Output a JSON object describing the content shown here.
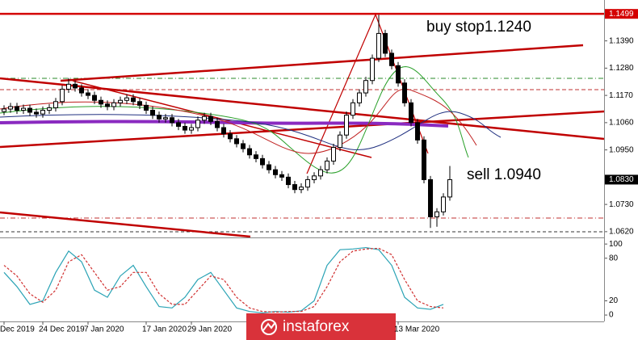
{
  "chart_data": [
    {
      "type": "candlestick",
      "categories": [
        "Dec 2019",
        null,
        null,
        null,
        null,
        null,
        "24 Dec 2019",
        null,
        null,
        null,
        null,
        null,
        null,
        "7 Jan 2020",
        null,
        null,
        null,
        null,
        null,
        null,
        null,
        null,
        "17 Jan 2020",
        null,
        null,
        null,
        null,
        null,
        null,
        "29 Jan 2020",
        null,
        null,
        null,
        null,
        null,
        null,
        null,
        null,
        null,
        null,
        null,
        null,
        null,
        null,
        null,
        null,
        null,
        null,
        null,
        null,
        null,
        null,
        null,
        null,
        null,
        null,
        null,
        null,
        null,
        null,
        null,
        "13 Mar 2020",
        null,
        null,
        null,
        null,
        null,
        null,
        null,
        null
      ],
      "open": [
        1.1105,
        1.1115,
        1.1125,
        1.111,
        1.1118,
        1.1102,
        1.1095,
        1.111,
        1.112,
        1.1145,
        1.1195,
        1.1215,
        1.12,
        1.118,
        1.117,
        1.115,
        1.1135,
        1.1125,
        1.114,
        1.115,
        1.116,
        1.1145,
        1.113,
        1.111,
        1.109,
        1.1075,
        1.108,
        1.106,
        1.1045,
        1.103,
        1.104,
        1.107,
        1.1085,
        1.1065,
        1.104,
        1.1015,
        1.0995,
        1.0975,
        1.0955,
        1.093,
        1.0915,
        1.089,
        1.087,
        1.085,
        1.084,
        1.081,
        1.079,
        1.08,
        1.083,
        1.0845,
        1.087,
        1.0905,
        1.096,
        1.101,
        1.109,
        1.114,
        1.118,
        1.123,
        1.132,
        1.142,
        1.134,
        1.129,
        1.122,
        1.114,
        1.106,
        1.099,
        1.083,
        1.068,
        1.07,
        1.076
      ],
      "high": [
        1.113,
        1.114,
        1.114,
        1.1133,
        1.1133,
        1.1117,
        1.1125,
        1.1135,
        1.116,
        1.121,
        1.124,
        1.123,
        1.1215,
        1.1195,
        1.1185,
        1.1165,
        1.115,
        1.1155,
        1.1165,
        1.1175,
        1.1175,
        1.116,
        1.1145,
        1.1125,
        1.1105,
        1.1095,
        1.1095,
        1.1075,
        1.106,
        1.1055,
        1.1085,
        1.11,
        1.11,
        1.108,
        1.1055,
        1.103,
        1.101,
        1.099,
        1.097,
        1.0945,
        1.093,
        1.0905,
        1.0885,
        1.0865,
        1.0855,
        1.0825,
        1.0815,
        1.0845,
        1.086,
        1.0885,
        1.092,
        1.0975,
        1.1025,
        1.1105,
        1.1155,
        1.1195,
        1.1245,
        1.1335,
        1.1495,
        1.1435,
        1.1355,
        1.1305,
        1.1235,
        1.1155,
        1.1075,
        1.1005,
        1.0845,
        1.0715,
        1.0775,
        1.0885
      ],
      "low": [
        1.109,
        1.11,
        1.1095,
        1.1095,
        1.1087,
        1.108,
        1.108,
        1.1095,
        1.1105,
        1.113,
        1.118,
        1.1185,
        1.1165,
        1.1155,
        1.1135,
        1.112,
        1.111,
        1.111,
        1.1125,
        1.1135,
        1.113,
        1.1115,
        1.1095,
        1.1075,
        1.106,
        1.106,
        1.1045,
        1.103,
        1.1015,
        1.1015,
        1.1025,
        1.1055,
        1.105,
        1.1025,
        1.1,
        1.098,
        1.096,
        1.094,
        1.0915,
        1.09,
        1.0875,
        1.0855,
        1.0835,
        1.0825,
        1.0795,
        1.0775,
        1.0775,
        1.0785,
        1.0815,
        1.083,
        1.0855,
        1.089,
        1.0945,
        1.0995,
        1.1075,
        1.1125,
        1.1165,
        1.1215,
        1.1305,
        1.1325,
        1.1275,
        1.1205,
        1.1125,
        1.1045,
        1.0975,
        1.0815,
        1.0635,
        1.064,
        1.0685,
        1.0745
      ],
      "close": [
        1.1115,
        1.1125,
        1.111,
        1.1118,
        1.1102,
        1.1095,
        1.111,
        1.112,
        1.1145,
        1.1195,
        1.1215,
        1.12,
        1.118,
        1.117,
        1.115,
        1.1135,
        1.1125,
        1.114,
        1.115,
        1.116,
        1.1145,
        1.113,
        1.111,
        1.109,
        1.1075,
        1.108,
        1.106,
        1.1045,
        1.103,
        1.104,
        1.107,
        1.1085,
        1.1065,
        1.104,
        1.1015,
        1.0995,
        1.0975,
        1.0955,
        1.093,
        1.0915,
        1.089,
        1.087,
        1.085,
        1.084,
        1.081,
        1.079,
        1.08,
        1.083,
        1.0845,
        1.087,
        1.0905,
        1.096,
        1.101,
        1.109,
        1.114,
        1.118,
        1.123,
        1.132,
        1.142,
        1.134,
        1.129,
        1.122,
        1.114,
        1.106,
        1.099,
        1.083,
        1.068,
        1.07,
        1.076,
        1.083
      ],
      "color_up": "#ffffff",
      "color_down": "#000000",
      "ylim": [
        1.06,
        1.1555
      ],
      "yticks": [
        {
          "value": 1.139,
          "label": "1.1390"
        },
        {
          "value": 1.128,
          "label": "1.1280"
        },
        {
          "value": 1.117,
          "label": "1.1170"
        },
        {
          "value": 1.106,
          "label": "1.1060"
        },
        {
          "value": 1.095,
          "label": "1.0950"
        },
        {
          "value": 1.073,
          "label": "1.0730"
        },
        {
          "value": 1.062,
          "label": "1.0620"
        }
      ],
      "levels": [
        {
          "value": 1.1499,
          "label": "1.1499",
          "color": "#d40000"
        }
      ],
      "last_price": {
        "value": 1.083,
        "label": "1.0830"
      },
      "annotations": [
        "buy stop1.1240",
        "sell 1.0940"
      ]
    },
    {
      "type": "line",
      "x": [
        0,
        2,
        4,
        6,
        8,
        10,
        12,
        14,
        16,
        18,
        20,
        22,
        24,
        26,
        28,
        30,
        32,
        34,
        36,
        38,
        40,
        42,
        44,
        46,
        48,
        50,
        52,
        54,
        56,
        58,
        60,
        62,
        64,
        66,
        68
      ],
      "ylim": [
        -9,
        107
      ],
      "yticks": [
        0,
        20,
        80,
        100
      ],
      "series": [
        {
          "color": "#2aa3b5",
          "values": [
            60,
            40,
            15,
            20,
            60,
            90,
            75,
            35,
            25,
            55,
            70,
            40,
            12,
            10,
            25,
            50,
            60,
            35,
            10,
            5,
            3,
            5,
            4,
            6,
            20,
            70,
            92,
            93,
            95,
            92,
            70,
            25,
            10,
            8,
            15
          ]
        },
        {
          "color": "#d03030",
          "dash": true,
          "values": [
            70,
            55,
            30,
            18,
            35,
            75,
            85,
            60,
            35,
            40,
            60,
            60,
            30,
            15,
            15,
            35,
            55,
            50,
            25,
            10,
            5,
            4,
            5,
            5,
            12,
            40,
            75,
            90,
            93,
            94,
            85,
            50,
            20,
            12,
            10
          ]
        }
      ]
    }
  ],
  "logo": "instaforex"
}
